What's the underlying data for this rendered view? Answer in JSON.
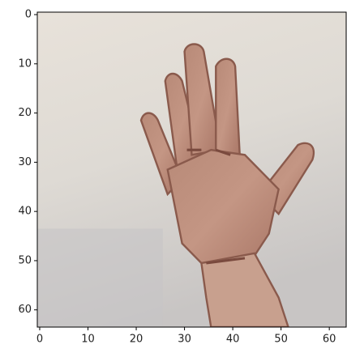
{
  "chart_data": {
    "type": "image",
    "xlim": [
      -0.5,
      63.5
    ],
    "ylim": [
      63.5,
      -0.5
    ],
    "xticks": [
      0,
      10,
      20,
      30,
      40,
      50,
      60
    ],
    "yticks": [
      0,
      10,
      20,
      30,
      40,
      50,
      60
    ]
  }
}
